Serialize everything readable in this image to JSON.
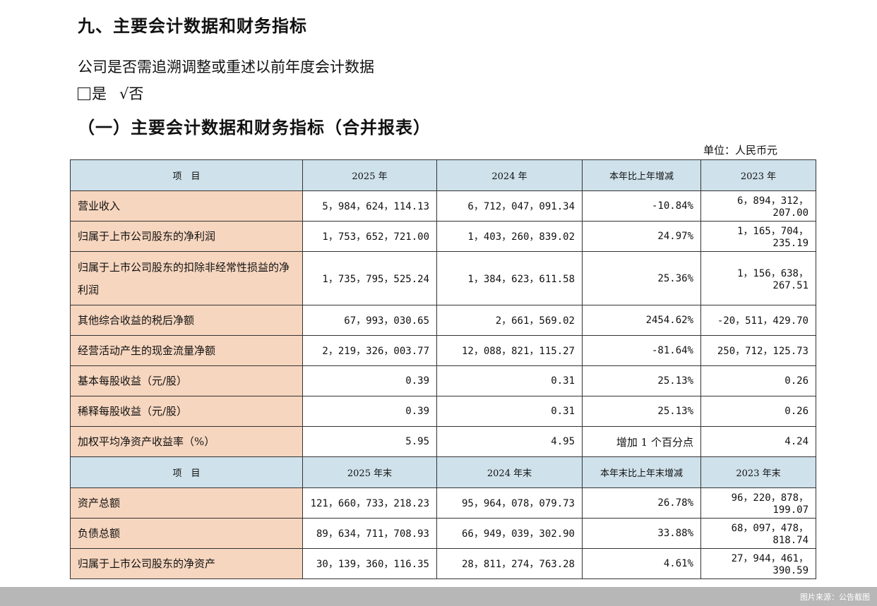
{
  "section_title": "九、主要会计数据和财务指标",
  "question": "公司是否需追溯调整或重述以前年度会计数据",
  "options": {
    "yes": "是",
    "check_mark": "√",
    "no": "否"
  },
  "subsection_title": "（一）主要会计数据和财务指标（合并报表）",
  "unit": "单位：人民币元",
  "table": {
    "header1": [
      "项　目",
      "2025 年",
      "2024 年",
      "本年比上年增减",
      "2023 年"
    ],
    "rows1": [
      {
        "label": "营业收入",
        "values": [
          "5，984，624，114.13",
          "6，712，047，091.34",
          "-10.84%",
          "6，894，312，207.00"
        ]
      },
      {
        "label": "归属于上市公司股东的净利润",
        "values": [
          "1，753，652，721.00",
          "1，403，260，839.02",
          "24.97%",
          "1，165，704，235.19"
        ]
      },
      {
        "label": "归属于上市公司股东的扣除非经常性损益的净利润",
        "values": [
          "1，735，795，525.24",
          "1，384，623，611.58",
          "25.36%",
          "1，156，638，267.51"
        ]
      },
      {
        "label": "其他综合收益的税后净额",
        "values": [
          "67，993，030.65",
          "2，661，569.02",
          "2454.62%",
          "-20，511，429.70"
        ]
      },
      {
        "label": "经营活动产生的现金流量净额",
        "values": [
          "2，219，326，003.77",
          "12，088，821，115.27",
          "-81.64%",
          "250，712，125.73"
        ]
      },
      {
        "label": "基本每股收益（元/股）",
        "values": [
          "0.39",
          "0.31",
          "25.13%",
          "0.26"
        ]
      },
      {
        "label": "稀释每股收益（元/股）",
        "values": [
          "0.39",
          "0.31",
          "25.13%",
          "0.26"
        ]
      },
      {
        "label": "加权平均净资产收益率（%）",
        "values": [
          "5.95",
          "4.95",
          "增加 1 个百分点",
          "4.24"
        ]
      }
    ],
    "header2": [
      "项　目",
      "2025 年末",
      "2024 年末",
      "本年末比上年末增减",
      "2023 年末"
    ],
    "rows2": [
      {
        "label": "资产总额",
        "values": [
          "121，660，733，218.23",
          "95，964，078，079.73",
          "26.78%",
          "96，220，878，199.07"
        ]
      },
      {
        "label": "负债总额",
        "values": [
          "89，634，711，708.93",
          "66，949，039，302.90",
          "33.88%",
          "68，097，478，818.74"
        ]
      },
      {
        "label": "归属于上市公司股东的净资产",
        "values": [
          "30，139，360，116.35",
          "28，811，274，763.28",
          "4.61%",
          "27，944，461，390.59"
        ]
      }
    ]
  },
  "footer_caption": "图片来源：公告截图"
}
